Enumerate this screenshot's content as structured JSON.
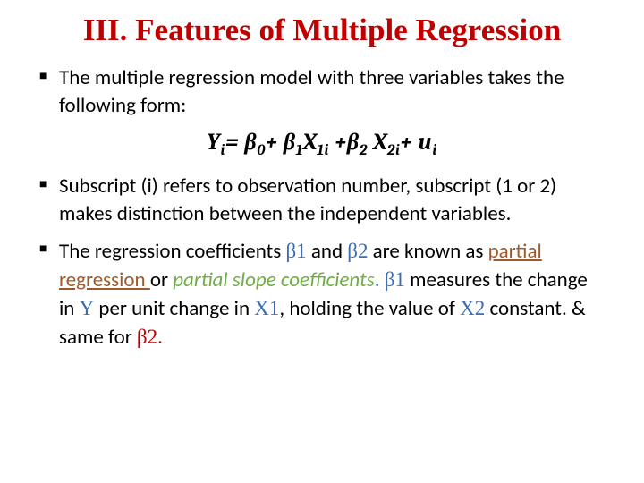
{
  "title": "III. Features of Multiple Regression",
  "bullets": {
    "b1": "The multiple regression model with three variables takes the following form:",
    "b2": "Subscript (i) refers to observation number, subscript (1 or 2) makes distinction between the independent variables.",
    "b3_pre": "The regression coefficients ",
    "b3_beta1": "β1",
    "b3_mid1": " and ",
    "b3_beta2": "β2",
    "b3_mid2": " are known as ",
    "b3_partial1": "partial regression ",
    "b3_or": "or ",
    "b3_partial2": "partial slope coefficients",
    "b3_dot": ". ",
    "b3_beta1b": "β1",
    "b3_mid3": " measures the change in ",
    "b3_y": "Y",
    "b3_mid4": " per unit change in ",
    "b3_x1": "X1",
    "b3_mid5": ", holding the value of ",
    "b3_x2": "X2",
    "b3_mid6": " constant. & same for ",
    "b3_beta2b": "β2",
    "b3_end": "."
  },
  "equation": {
    "y": "Y",
    "yi": "i",
    "eq": "= ",
    "b0": "β",
    "s0": "0",
    "plus1": "+ ",
    "b1": "β",
    "s1": "1",
    "x1": "X",
    "s1i": "1i",
    "plus2": " +",
    "b2": "β",
    "s2": "2",
    "sp": " ",
    "x2": "X",
    "s2i": "2i",
    "plus3": "+ ",
    "u": "u",
    "ui": "i"
  },
  "colors": {
    "title": "#c00000",
    "text": "#000000",
    "accent_blue": "#3a6db5",
    "accent_orange": "#9d5a2c",
    "accent_green": "#70ad47",
    "accent_red": "#c00000",
    "background": "#ffffff"
  },
  "typography": {
    "title_fontsize": 35,
    "body_fontsize": 23,
    "equation_fontsize": 26,
    "title_font": "Times New Roman",
    "body_font": "Calibri"
  }
}
